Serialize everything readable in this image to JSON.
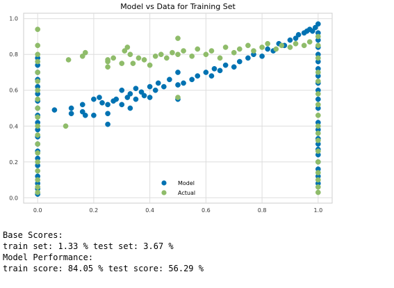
{
  "chart_data": {
    "type": "scatter",
    "title": "Model vs Data for Training Set",
    "xlabel": "",
    "ylabel": "",
    "xlim": [
      -0.05,
      1.05
    ],
    "ylim": [
      -0.03,
      1.03
    ],
    "xticks": [
      0.0,
      0.2,
      0.4,
      0.6,
      0.8,
      1.0
    ],
    "yticks": [
      0.0,
      0.2,
      0.4,
      0.6,
      0.8,
      1.0
    ],
    "xtick_labels": [
      "0.0",
      "0.2",
      "0.4",
      "0.6",
      "0.8",
      "1.0"
    ],
    "ytick_labels": [
      "0.0",
      "0.2",
      "0.4",
      "0.6",
      "0.8",
      "1.0"
    ],
    "grid": true,
    "legend_position": "lower-center",
    "series": [
      {
        "name": "Model",
        "color": "#0072b2",
        "points": [
          [
            0.0,
            0.02
          ],
          [
            0.0,
            0.05
          ],
          [
            0.0,
            0.08
          ],
          [
            0.0,
            0.12
          ],
          [
            0.0,
            0.18
          ],
          [
            0.0,
            0.22
          ],
          [
            0.0,
            0.26
          ],
          [
            0.0,
            0.3
          ],
          [
            0.0,
            0.34
          ],
          [
            0.0,
            0.38
          ],
          [
            0.0,
            0.42
          ],
          [
            0.0,
            0.46
          ],
          [
            0.0,
            0.5
          ],
          [
            0.0,
            0.54
          ],
          [
            0.0,
            0.58
          ],
          [
            0.0,
            0.62
          ],
          [
            0.0,
            0.66
          ],
          [
            0.0,
            0.7
          ],
          [
            0.0,
            0.74
          ],
          [
            0.0,
            0.78
          ],
          [
            0.06,
            0.49
          ],
          [
            0.12,
            0.5
          ],
          [
            0.12,
            0.47
          ],
          [
            0.16,
            0.52
          ],
          [
            0.16,
            0.48
          ],
          [
            0.17,
            0.46
          ],
          [
            0.2,
            0.55
          ],
          [
            0.2,
            0.46
          ],
          [
            0.22,
            0.56
          ],
          [
            0.23,
            0.53
          ],
          [
            0.25,
            0.52
          ],
          [
            0.25,
            0.47
          ],
          [
            0.25,
            0.41
          ],
          [
            0.27,
            0.54
          ],
          [
            0.28,
            0.55
          ],
          [
            0.3,
            0.52
          ],
          [
            0.3,
            0.6
          ],
          [
            0.32,
            0.56
          ],
          [
            0.33,
            0.58
          ],
          [
            0.33,
            0.5
          ],
          [
            0.35,
            0.61
          ],
          [
            0.35,
            0.55
          ],
          [
            0.37,
            0.59
          ],
          [
            0.38,
            0.57
          ],
          [
            0.4,
            0.62
          ],
          [
            0.4,
            0.56
          ],
          [
            0.42,
            0.6
          ],
          [
            0.43,
            0.64
          ],
          [
            0.45,
            0.62
          ],
          [
            0.47,
            0.66
          ],
          [
            0.5,
            0.55
          ],
          [
            0.5,
            0.63
          ],
          [
            0.5,
            0.7
          ],
          [
            0.52,
            0.64
          ],
          [
            0.55,
            0.66
          ],
          [
            0.57,
            0.68
          ],
          [
            0.6,
            0.7
          ],
          [
            0.62,
            0.68
          ],
          [
            0.63,
            0.72
          ],
          [
            0.65,
            0.71
          ],
          [
            0.67,
            0.74
          ],
          [
            0.7,
            0.73
          ],
          [
            0.72,
            0.76
          ],
          [
            0.75,
            0.78
          ],
          [
            0.77,
            0.8
          ],
          [
            0.8,
            0.79
          ],
          [
            0.82,
            0.83
          ],
          [
            0.84,
            0.82
          ],
          [
            0.86,
            0.86
          ],
          [
            0.88,
            0.85
          ],
          [
            0.9,
            0.88
          ],
          [
            0.92,
            0.89
          ],
          [
            0.93,
            0.91
          ],
          [
            0.95,
            0.92
          ],
          [
            0.96,
            0.93
          ],
          [
            0.97,
            0.94
          ],
          [
            0.98,
            0.93
          ],
          [
            0.99,
            0.95
          ],
          [
            1.0,
            0.97
          ],
          [
            1.0,
            0.92
          ],
          [
            1.0,
            0.88
          ],
          [
            1.0,
            0.84
          ],
          [
            1.0,
            0.8
          ],
          [
            1.0,
            0.76
          ],
          [
            1.0,
            0.72
          ],
          [
            1.0,
            0.68
          ],
          [
            1.0,
            0.64
          ],
          [
            1.0,
            0.6
          ],
          [
            1.0,
            0.55
          ],
          [
            1.0,
            0.5
          ],
          [
            1.0,
            0.42
          ],
          [
            1.0,
            0.38
          ],
          [
            1.0,
            0.33
          ],
          [
            1.0,
            0.3
          ],
          [
            1.0,
            0.27
          ],
          [
            1.0,
            0.24
          ],
          [
            1.0,
            0.2
          ],
          [
            1.0,
            0.16
          ],
          [
            1.0,
            0.12
          ],
          [
            1.0,
            0.08
          ]
        ]
      },
      {
        "name": "Actual",
        "color": "#8fbc6a",
        "points": [
          [
            0.0,
            0.94
          ],
          [
            0.0,
            0.85
          ],
          [
            0.0,
            0.8
          ],
          [
            0.0,
            0.76
          ],
          [
            0.0,
            0.7
          ],
          [
            0.0,
            0.65
          ],
          [
            0.0,
            0.6
          ],
          [
            0.0,
            0.55
          ],
          [
            0.0,
            0.5
          ],
          [
            0.0,
            0.45
          ],
          [
            0.0,
            0.4
          ],
          [
            0.0,
            0.35
          ],
          [
            0.0,
            0.3
          ],
          [
            0.0,
            0.25
          ],
          [
            0.0,
            0.2
          ],
          [
            0.0,
            0.15
          ],
          [
            0.0,
            0.1
          ],
          [
            0.0,
            0.06
          ],
          [
            0.0,
            0.03
          ],
          [
            0.1,
            0.4
          ],
          [
            0.11,
            0.77
          ],
          [
            0.16,
            0.79
          ],
          [
            0.17,
            0.81
          ],
          [
            0.25,
            0.76
          ],
          [
            0.25,
            0.77
          ],
          [
            0.25,
            0.73
          ],
          [
            0.27,
            0.78
          ],
          [
            0.3,
            0.75
          ],
          [
            0.31,
            0.82
          ],
          [
            0.32,
            0.84
          ],
          [
            0.33,
            0.8
          ],
          [
            0.34,
            0.75
          ],
          [
            0.36,
            0.78
          ],
          [
            0.38,
            0.77
          ],
          [
            0.4,
            0.74
          ],
          [
            0.42,
            0.79
          ],
          [
            0.44,
            0.8
          ],
          [
            0.46,
            0.78
          ],
          [
            0.48,
            0.81
          ],
          [
            0.5,
            0.89
          ],
          [
            0.5,
            0.8
          ],
          [
            0.5,
            0.56
          ],
          [
            0.52,
            0.82
          ],
          [
            0.55,
            0.79
          ],
          [
            0.57,
            0.83
          ],
          [
            0.6,
            0.8
          ],
          [
            0.62,
            0.82
          ],
          [
            0.65,
            0.78
          ],
          [
            0.67,
            0.84
          ],
          [
            0.7,
            0.81
          ],
          [
            0.72,
            0.83
          ],
          [
            0.75,
            0.85
          ],
          [
            0.77,
            0.82
          ],
          [
            0.8,
            0.84
          ],
          [
            0.82,
            0.86
          ],
          [
            0.85,
            0.83
          ],
          [
            0.87,
            0.85
          ],
          [
            0.9,
            0.84
          ],
          [
            0.92,
            0.86
          ],
          [
            0.95,
            0.85
          ],
          [
            0.97,
            0.87
          ],
          [
            1.0,
            0.9
          ],
          [
            1.0,
            0.85
          ],
          [
            1.0,
            0.78
          ],
          [
            1.0,
            0.7
          ],
          [
            1.0,
            0.65
          ],
          [
            1.0,
            0.58
          ],
          [
            1.0,
            0.52
          ],
          [
            1.0,
            0.46
          ],
          [
            1.0,
            0.4
          ],
          [
            1.0,
            0.36
          ],
          [
            1.0,
            0.32
          ],
          [
            1.0,
            0.26
          ],
          [
            1.0,
            0.2
          ],
          [
            1.0,
            0.14
          ],
          [
            1.0,
            0.1
          ],
          [
            1.0,
            0.06
          ],
          [
            1.0,
            0.03
          ]
        ]
      }
    ]
  },
  "scores": {
    "base_heading": "Base Scores:",
    "base_line": "train set: 1.33 % test set: 3.67 %",
    "perf_heading": "Model Performance:",
    "perf_line": "train score: 84.05 % test score: 56.29 %"
  }
}
